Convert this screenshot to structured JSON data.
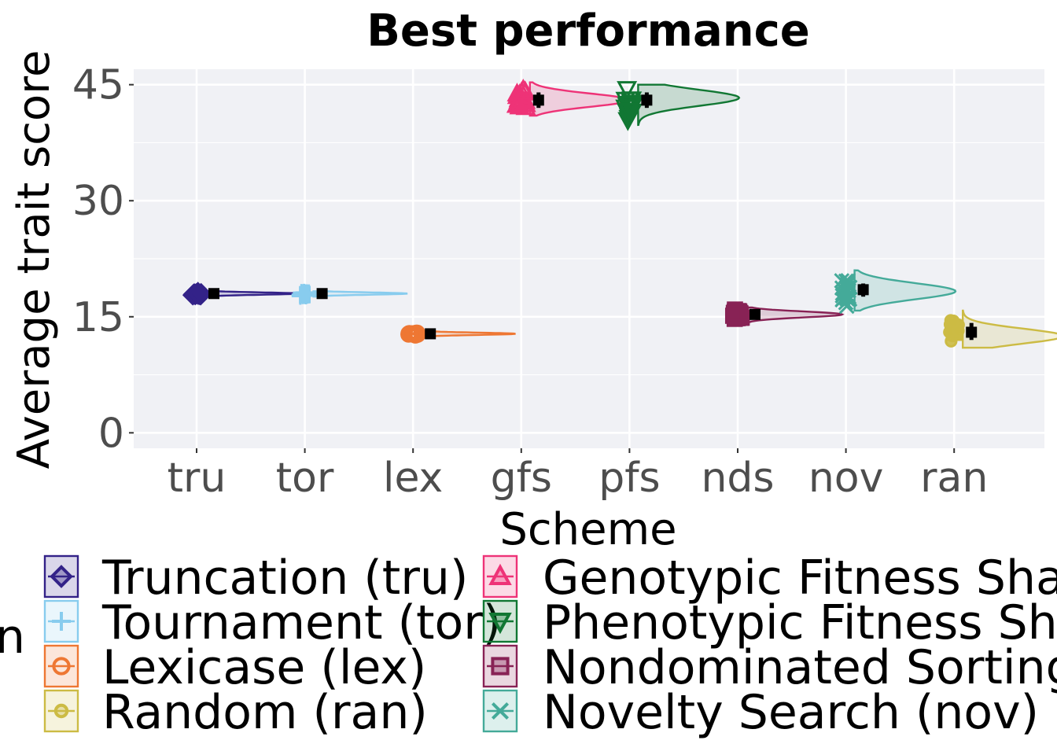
{
  "chart_data": {
    "type": "raincloud",
    "title": "Best performance",
    "xlabel": "Scheme",
    "ylabel": "Average trait score",
    "ylim": [
      -2,
      47
    ],
    "yticks": [
      0,
      15,
      30,
      45
    ],
    "grid": true,
    "categories": [
      "tru",
      "tor",
      "lex",
      "gfs",
      "pfs",
      "nds",
      "nov",
      "ran"
    ],
    "series": [
      {
        "key": "tru",
        "name": "Truncation (tru)",
        "color": "#332288",
        "marker": "diamond",
        "min": 17.6,
        "q1": 17.9,
        "median": 18.0,
        "q3": 18.1,
        "max": 18.3,
        "mode": 18.0
      },
      {
        "key": "tor",
        "name": "Tournament (tor)",
        "color": "#88CCEE",
        "marker": "plus",
        "min": 17.6,
        "q1": 17.9,
        "median": 18.0,
        "q3": 18.1,
        "max": 18.3,
        "mode": 18.0
      },
      {
        "key": "lex",
        "name": "Lexicase (lex)",
        "color": "#EE7733",
        "marker": "circle-ring",
        "min": 12.5,
        "q1": 12.7,
        "median": 12.8,
        "q3": 12.9,
        "max": 13.1,
        "mode": 12.8
      },
      {
        "key": "gfs",
        "name": "Genotypic Fitness Sharing (gfs)",
        "color": "#EE3377",
        "marker": "triangle",
        "min": 41.0,
        "q1": 42.0,
        "median": 43.0,
        "q3": 44.0,
        "max": 45.3,
        "mode": 43.0
      },
      {
        "key": "pfs",
        "name": "Phenotypic Fitness Sharing (pfs)",
        "color": "#117733",
        "marker": "triangle-down",
        "min": 39.8,
        "q1": 42.0,
        "median": 43.0,
        "q3": 44.0,
        "max": 45.0,
        "mode": 43.3
      },
      {
        "key": "nds",
        "name": "Nondominated Sorting (nds)",
        "color": "#882255",
        "marker": "square",
        "min": 14.3,
        "q1": 14.9,
        "median": 15.3,
        "q3": 15.6,
        "max": 16.2,
        "mode": 15.3
      },
      {
        "key": "nov",
        "name": "Novelty Search (nov)",
        "color": "#44AA99",
        "marker": "cross",
        "min": 15.8,
        "q1": 17.6,
        "median": 18.5,
        "q3": 19.3,
        "max": 21.0,
        "mode": 18.3
      },
      {
        "key": "ran",
        "name": "Random (ran)",
        "color": "#CCBB44",
        "marker": "dot",
        "min": 11.0,
        "q1": 12.0,
        "median": 13.0,
        "q3": 14.2,
        "max": 15.8,
        "mode": 12.5
      }
    ]
  },
  "legend": {
    "partial_title": "n",
    "column1": [
      "Truncation (tru)",
      "Tournament (tor)",
      "Lexicase (lex)",
      "Random (ran)"
    ],
    "column2": [
      "Genotypic Fitness Sharing (gfs)",
      "Phenotypic Fitness Sharing (pfs)",
      "Nondominated Sorting (nds)",
      "Novelty Search (nov)"
    ]
  }
}
